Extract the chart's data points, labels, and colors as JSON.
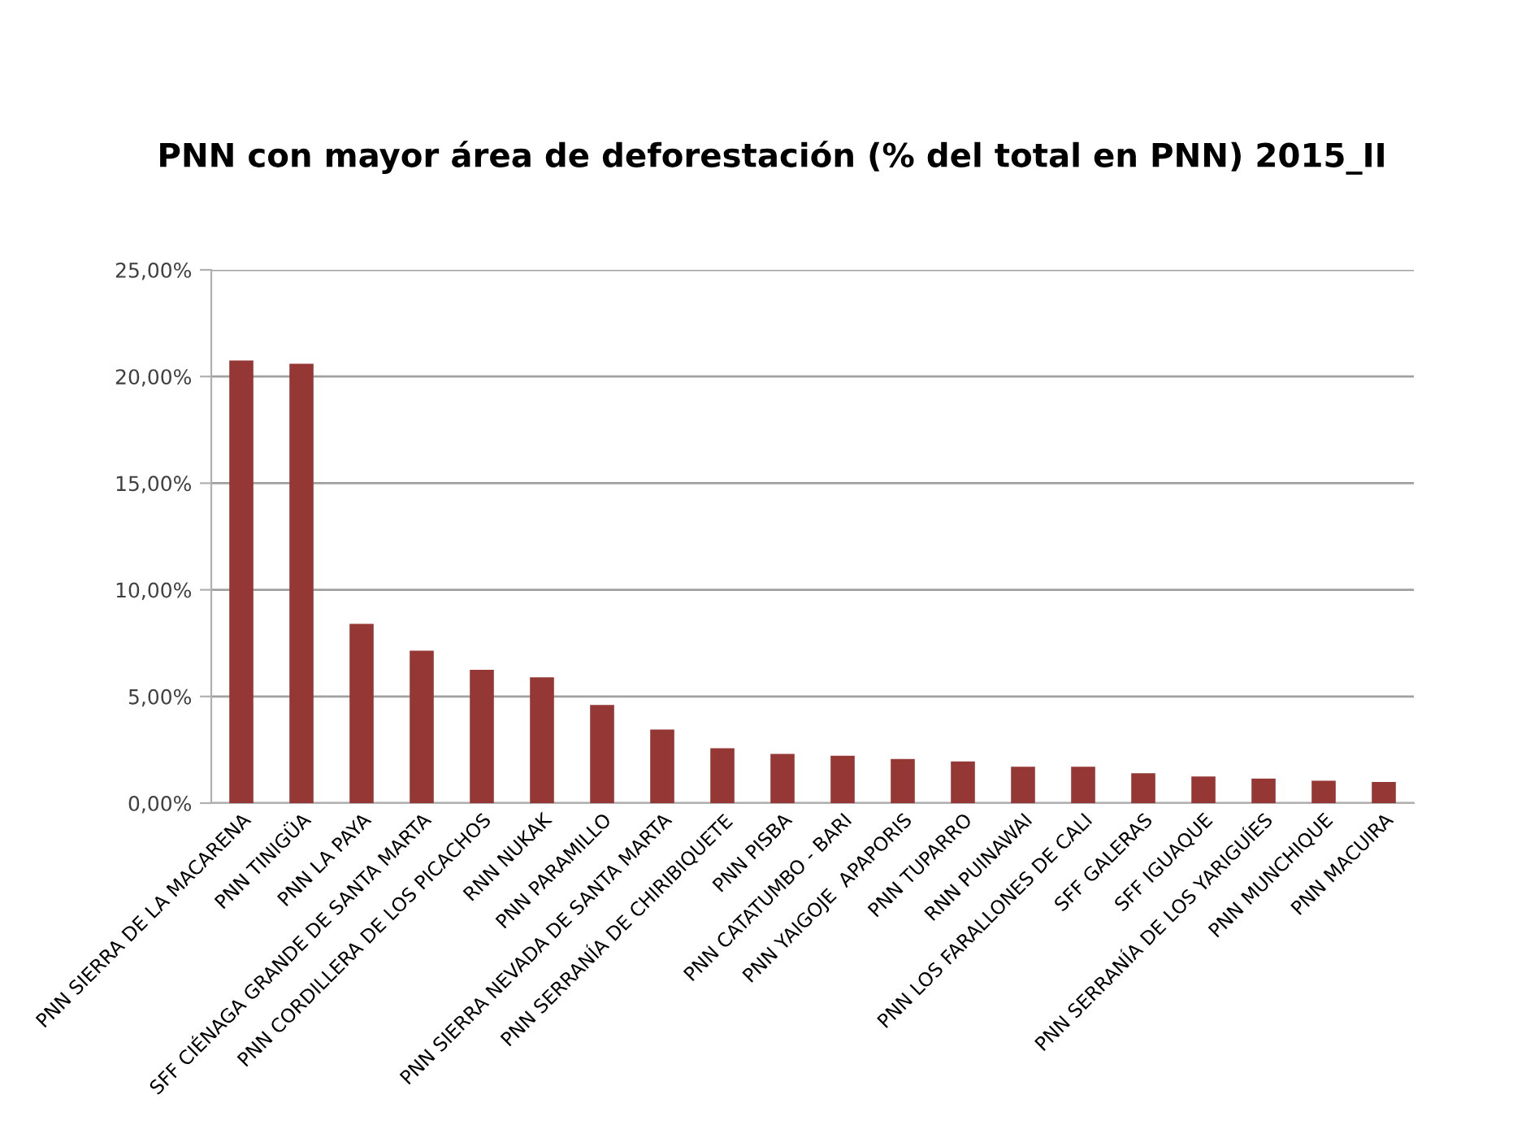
{
  "chart_data": {
    "type": "bar",
    "title": "PNN con mayor área de deforestación (% del total en PNN) 2015_II",
    "categories": [
      "PNN SIERRA DE LA MACARENA",
      "PNN TINIGÜA",
      "PNN LA PAYA",
      "SFF CIÉNAGA GRANDE DE SANTA MARTA",
      "PNN CORDILLERA DE LOS PICACHOS",
      "RNN NUKAK",
      "PNN PARAMILLO",
      "PNN SIERRA NEVADA DE SANTA MARTA",
      "PNN SERRANÍA DE CHIRIBIQUETE",
      "PNN PISBA",
      "PNN CATATUMBO - BARI",
      "PNN YAIGOJE  APAPORIS",
      "PNN TUPARRO",
      "RNN PUINAWAI",
      "PNN LOS FARALLONES DE CALI",
      "SFF GALERAS",
      "SFF IGUAQUE",
      "PNN SERRANÍA DE LOS YARIGUÍES",
      "PNN MUNCHIQUE",
      "PNN MACUIRA"
    ],
    "values": [
      20.75,
      20.6,
      8.4,
      7.15,
      6.25,
      5.9,
      4.6,
      3.45,
      2.57,
      2.31,
      2.22,
      2.07,
      1.95,
      1.71,
      1.71,
      1.4,
      1.25,
      1.15,
      1.05,
      0.99
    ],
    "color": "#953735",
    "ylim": [
      0,
      25
    ],
    "yticks": [
      {
        "value": 0,
        "label": "0,00%"
      },
      {
        "value": 5,
        "label": "5,00%"
      },
      {
        "value": 10,
        "label": "10,00%"
      },
      {
        "value": 15,
        "label": "15,00%"
      },
      {
        "value": 20,
        "label": "20,00%"
      },
      {
        "value": 25,
        "label": "25,00%"
      }
    ],
    "grid": "y"
  }
}
